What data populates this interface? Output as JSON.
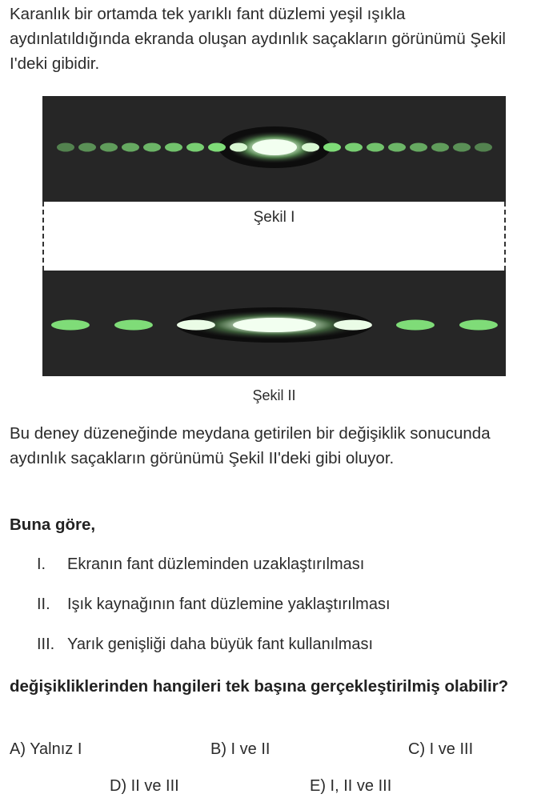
{
  "intro": "Karanlık bir ortamda tek yarıklı fant düzlemi yeşil ışıkla aydınlatıldığında ekranda oluşan aydınlık saçakların görünümü Şekil I'deki gibidir.",
  "figure": {
    "label1": "Şekil I",
    "label2": "Şekil II",
    "colors": {
      "band": "#262626",
      "fringe": "#7fdc78",
      "center": "#f2fff0"
    }
  },
  "after_figure": "Bu deney düzeneğinde meydana getirilen bir değişiklik sonucunda aydınlık saçakların görünümü Şekil II'deki gibi oluyor.",
  "lead": "Buna göre,",
  "statements": [
    {
      "num": "I.",
      "text": "Ekranın fant düzleminden uzaklaştırılması"
    },
    {
      "num": "II.",
      "text": "Işık kaynağının fant düzlemine yaklaştırılması"
    },
    {
      "num": "III.",
      "text": "Yarık genişliği daha büyük fant kullanılması"
    }
  ],
  "question": "değişikliklerinden hangileri tek başına gerçekleştirilmiş olabilir?",
  "options": {
    "a": "A) Yalnız I",
    "b": "B) I ve II",
    "c": "C) I ve III",
    "d": "D) II ve III",
    "e": "E) I, II ve III"
  }
}
